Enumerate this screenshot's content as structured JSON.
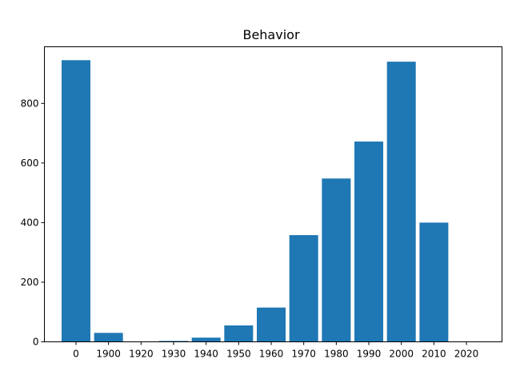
{
  "chart_data": {
    "type": "bar",
    "title": "Behavior",
    "xlabel": "",
    "ylabel": "",
    "categories": [
      "0",
      "1900",
      "1920",
      "1930",
      "1940",
      "1950",
      "1960",
      "1970",
      "1980",
      "1990",
      "2000",
      "2010",
      "2020"
    ],
    "values": [
      945,
      30,
      0,
      3,
      14,
      55,
      115,
      358,
      548,
      672,
      940,
      400,
      0
    ],
    "ylim": [
      0,
      990
    ],
    "yticks": [
      0,
      200,
      400,
      600,
      800
    ],
    "bar_color": "#1f77b4",
    "grid": false,
    "legend": "none"
  }
}
